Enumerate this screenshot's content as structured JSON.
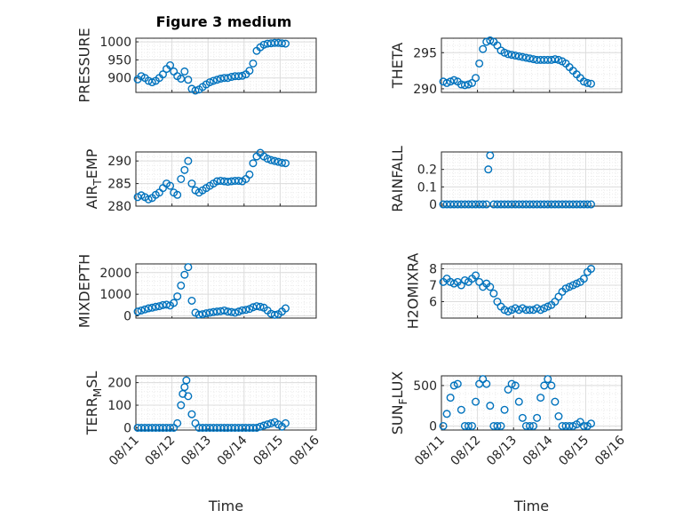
{
  "figure": {
    "title": "Figure 3 medium"
  },
  "colors": {
    "marker": "#0072BD",
    "axis": "#262626"
  },
  "chart_data": [
    {
      "type": "scatter",
      "title": "Figure 3 medium",
      "ylabel": "PRESSURE",
      "xlabel": "",
      "ylim": [
        860,
        1010
      ],
      "yticks": [
        900,
        950,
        1000
      ],
      "xlim": [
        "08/11",
        "08/16"
      ],
      "xticks": [
        "08/11",
        "08/12",
        "08/13",
        "08/14",
        "08/15",
        "08/16"
      ],
      "grid": true,
      "marker": "circle",
      "x": [
        0.05,
        0.15,
        0.25,
        0.35,
        0.45,
        0.55,
        0.65,
        0.75,
        0.85,
        0.95,
        1.05,
        1.15,
        1.25,
        1.35,
        1.45,
        1.55,
        1.65,
        1.75,
        1.85,
        1.95,
        2.05,
        2.15,
        2.25,
        2.35,
        2.45,
        2.55,
        2.65,
        2.75,
        2.85,
        2.95,
        3.05,
        3.15,
        3.25,
        3.35,
        3.45,
        3.55,
        3.65,
        3.75,
        3.85,
        3.95,
        4.05,
        4.15
      ],
      "y": [
        896,
        905,
        900,
        892,
        888,
        892,
        900,
        910,
        925,
        935,
        918,
        905,
        898,
        918,
        895,
        870,
        865,
        868,
        875,
        882,
        888,
        892,
        895,
        898,
        900,
        900,
        903,
        905,
        905,
        906,
        910,
        920,
        940,
        975,
        985,
        992,
        995,
        996,
        997,
        997,
        996,
        995
      ]
    },
    {
      "type": "scatter",
      "title": "",
      "ylabel": "THETA",
      "xlabel": "",
      "ylim": [
        289.5,
        297
      ],
      "yticks": [
        290,
        295
      ],
      "xlim": [
        "08/11",
        "08/16"
      ],
      "xticks": [
        "08/11",
        "08/12",
        "08/13",
        "08/14",
        "08/15",
        "08/16"
      ],
      "grid": true,
      "marker": "circle",
      "x": [
        0.05,
        0.15,
        0.25,
        0.35,
        0.45,
        0.55,
        0.65,
        0.75,
        0.85,
        0.95,
        1.05,
        1.15,
        1.25,
        1.35,
        1.45,
        1.55,
        1.65,
        1.75,
        1.85,
        1.95,
        2.05,
        2.15,
        2.25,
        2.35,
        2.45,
        2.55,
        2.65,
        2.75,
        2.85,
        2.95,
        3.05,
        3.15,
        3.25,
        3.35,
        3.45,
        3.55,
        3.65,
        3.75,
        3.85,
        3.95,
        4.05,
        4.15
      ],
      "y": [
        291.0,
        290.8,
        291.0,
        291.2,
        291.0,
        290.6,
        290.5,
        290.6,
        290.8,
        291.5,
        293.5,
        295.5,
        296.5,
        296.7,
        296.5,
        296.0,
        295.3,
        295.0,
        294.8,
        294.7,
        294.6,
        294.5,
        294.4,
        294.3,
        294.2,
        294.1,
        294.0,
        294.0,
        294.0,
        294.0,
        294.0,
        294.1,
        294.0,
        293.8,
        293.5,
        293.0,
        292.5,
        292.0,
        291.5,
        291.0,
        290.8,
        290.7
      ]
    },
    {
      "type": "scatter",
      "title": "",
      "ylabel": "AIR_TEMP",
      "xlabel": "",
      "ylim": [
        280,
        292
      ],
      "yticks": [
        280,
        285,
        290
      ],
      "xlim": [
        "08/11",
        "08/16"
      ],
      "xticks": [
        "08/11",
        "08/12",
        "08/13",
        "08/14",
        "08/15",
        "08/16"
      ],
      "grid": true,
      "marker": "circle",
      "x": [
        0.05,
        0.15,
        0.25,
        0.35,
        0.45,
        0.55,
        0.65,
        0.75,
        0.85,
        0.95,
        1.05,
        1.15,
        1.25,
        1.35,
        1.45,
        1.55,
        1.65,
        1.75,
        1.85,
        1.95,
        2.05,
        2.15,
        2.25,
        2.35,
        2.45,
        2.55,
        2.65,
        2.75,
        2.85,
        2.95,
        3.05,
        3.15,
        3.25,
        3.35,
        3.45,
        3.55,
        3.65,
        3.75,
        3.85,
        3.95,
        4.05,
        4.15
      ],
      "y": [
        282.0,
        282.4,
        282.0,
        281.5,
        281.8,
        282.5,
        283.0,
        284.0,
        285.0,
        284.5,
        283.0,
        282.5,
        286.0,
        288.0,
        290.0,
        285.0,
        283.5,
        283.0,
        283.5,
        284.0,
        284.5,
        285.0,
        285.5,
        285.6,
        285.5,
        285.4,
        285.5,
        285.6,
        285.6,
        285.5,
        286.0,
        287.0,
        289.5,
        291.0,
        291.8,
        291.0,
        290.5,
        290.2,
        290.0,
        289.8,
        289.6,
        289.5
      ]
    },
    {
      "type": "scatter",
      "title": "",
      "ylabel": "RAINFALL",
      "xlabel": "",
      "ylim": [
        -0.01,
        0.3
      ],
      "yticks": [
        0,
        0.1,
        0.2
      ],
      "xlim": [
        "08/11",
        "08/16"
      ],
      "xticks": [
        "08/11",
        "08/12",
        "08/13",
        "08/14",
        "08/15",
        "08/16"
      ],
      "grid": true,
      "marker": "circle",
      "x": [
        0.05,
        0.15,
        0.25,
        0.35,
        0.45,
        0.55,
        0.65,
        0.75,
        0.85,
        0.95,
        1.05,
        1.15,
        1.25,
        1.3,
        1.35,
        1.45,
        1.55,
        1.65,
        1.75,
        1.85,
        1.95,
        2.05,
        2.15,
        2.25,
        2.35,
        2.45,
        2.55,
        2.65,
        2.75,
        2.85,
        2.95,
        3.05,
        3.15,
        3.25,
        3.35,
        3.45,
        3.55,
        3.65,
        3.75,
        3.85,
        3.95,
        4.05,
        4.15
      ],
      "y": [
        0,
        0,
        0,
        0,
        0,
        0,
        0,
        0,
        0,
        0,
        0,
        0,
        0,
        0.2,
        0.28,
        0,
        0,
        0,
        0,
        0,
        0,
        0,
        0,
        0,
        0,
        0,
        0,
        0,
        0,
        0,
        0,
        0,
        0,
        0,
        0,
        0,
        0,
        0,
        0,
        0,
        0,
        0,
        0
      ]
    },
    {
      "type": "scatter",
      "title": "",
      "ylabel": "MIXDEPTH",
      "xlabel": "",
      "ylim": [
        -100,
        2400
      ],
      "yticks": [
        0,
        1000,
        2000
      ],
      "xlim": [
        "08/11",
        "08/16"
      ],
      "xticks": [
        "08/11",
        "08/12",
        "08/13",
        "08/14",
        "08/15",
        "08/16"
      ],
      "grid": true,
      "marker": "circle",
      "x": [
        0.05,
        0.15,
        0.25,
        0.35,
        0.45,
        0.55,
        0.65,
        0.75,
        0.85,
        0.95,
        1.05,
        1.15,
        1.25,
        1.35,
        1.45,
        1.55,
        1.65,
        1.75,
        1.85,
        1.95,
        2.05,
        2.15,
        2.25,
        2.35,
        2.45,
        2.55,
        2.65,
        2.75,
        2.85,
        2.95,
        3.05,
        3.15,
        3.25,
        3.35,
        3.45,
        3.55,
        3.65,
        3.75,
        3.85,
        3.95,
        4.05,
        4.15
      ],
      "y": [
        200,
        250,
        300,
        350,
        380,
        420,
        450,
        500,
        520,
        480,
        600,
        900,
        1400,
        1900,
        2250,
        700,
        150,
        60,
        80,
        120,
        150,
        180,
        200,
        220,
        250,
        200,
        180,
        150,
        200,
        260,
        280,
        320,
        400,
        450,
        420,
        380,
        250,
        100,
        50,
        80,
        200,
        350
      ]
    },
    {
      "type": "scatter",
      "title": "",
      "ylabel": "H2OMIXRA",
      "xlabel": "",
      "ylim": [
        5,
        8.3
      ],
      "yticks": [
        6,
        7,
        8
      ],
      "xlim": [
        "08/11",
        "08/16"
      ],
      "xticks": [
        "08/11",
        "08/12",
        "08/13",
        "08/14",
        "08/15",
        "08/16"
      ],
      "grid": true,
      "marker": "circle",
      "x": [
        0.05,
        0.15,
        0.25,
        0.35,
        0.45,
        0.55,
        0.65,
        0.75,
        0.85,
        0.95,
        1.05,
        1.15,
        1.25,
        1.35,
        1.45,
        1.55,
        1.65,
        1.75,
        1.85,
        1.95,
        2.05,
        2.15,
        2.25,
        2.35,
        2.45,
        2.55,
        2.65,
        2.75,
        2.85,
        2.95,
        3.05,
        3.15,
        3.25,
        3.35,
        3.45,
        3.55,
        3.65,
        3.75,
        3.85,
        3.95,
        4.05,
        4.15
      ],
      "y": [
        7.2,
        7.4,
        7.2,
        7.1,
        7.2,
        7.0,
        7.3,
        7.2,
        7.4,
        7.6,
        7.2,
        6.9,
        7.1,
        6.9,
        6.5,
        6.0,
        5.7,
        5.5,
        5.4,
        5.5,
        5.6,
        5.5,
        5.6,
        5.5,
        5.5,
        5.5,
        5.6,
        5.5,
        5.6,
        5.7,
        5.8,
        6.0,
        6.3,
        6.6,
        6.8,
        6.9,
        7.0,
        7.1,
        7.2,
        7.4,
        7.8,
        8.0
      ]
    },
    {
      "type": "scatter",
      "title": "",
      "ylabel": "TERR_MSL",
      "xlabel": "Time",
      "ylim": [
        -10,
        230
      ],
      "yticks": [
        0,
        100,
        200
      ],
      "xlim": [
        "08/11",
        "08/16"
      ],
      "xticks": [
        "08/11",
        "08/12",
        "08/13",
        "08/14",
        "08/15",
        "08/16"
      ],
      "grid": true,
      "marker": "circle",
      "x": [
        0.05,
        0.15,
        0.25,
        0.35,
        0.45,
        0.55,
        0.65,
        0.75,
        0.85,
        0.95,
        1.05,
        1.15,
        1.25,
        1.3,
        1.35,
        1.4,
        1.45,
        1.55,
        1.65,
        1.75,
        1.85,
        1.95,
        2.05,
        2.15,
        2.25,
        2.35,
        2.45,
        2.55,
        2.65,
        2.75,
        2.85,
        2.95,
        3.05,
        3.15,
        3.25,
        3.35,
        3.45,
        3.55,
        3.65,
        3.75,
        3.85,
        3.95,
        4.05,
        4.15
      ],
      "y": [
        0,
        0,
        0,
        0,
        0,
        0,
        0,
        0,
        0,
        0,
        0,
        20,
        100,
        150,
        180,
        210,
        140,
        60,
        20,
        0,
        0,
        0,
        0,
        0,
        0,
        0,
        0,
        0,
        0,
        0,
        0,
        0,
        0,
        0,
        0,
        0,
        5,
        10,
        15,
        20,
        25,
        15,
        5,
        20
      ]
    },
    {
      "type": "scatter",
      "title": "",
      "ylabel": "SUN_FLUX",
      "xlabel": "Time",
      "ylim": [
        -50,
        620
      ],
      "yticks": [
        0,
        500
      ],
      "xlim": [
        "08/11",
        "08/16"
      ],
      "xticks": [
        "08/11",
        "08/12",
        "08/13",
        "08/14",
        "08/15",
        "08/16"
      ],
      "grid": true,
      "marker": "circle",
      "x": [
        0.05,
        0.15,
        0.25,
        0.35,
        0.45,
        0.55,
        0.65,
        0.75,
        0.85,
        0.95,
        1.05,
        1.15,
        1.25,
        1.35,
        1.45,
        1.55,
        1.65,
        1.75,
        1.85,
        1.95,
        2.05,
        2.15,
        2.25,
        2.35,
        2.45,
        2.55,
        2.65,
        2.75,
        2.85,
        2.95,
        3.05,
        3.15,
        3.25,
        3.35,
        3.45,
        3.55,
        3.65,
        3.75,
        3.85,
        3.95,
        4.05,
        4.15
      ],
      "y": [
        0,
        150,
        350,
        500,
        520,
        200,
        0,
        0,
        0,
        300,
        520,
        580,
        520,
        250,
        0,
        0,
        0,
        200,
        450,
        520,
        500,
        300,
        100,
        0,
        0,
        0,
        100,
        350,
        500,
        580,
        500,
        300,
        120,
        0,
        0,
        0,
        0,
        20,
        50,
        0,
        0,
        30
      ]
    }
  ]
}
